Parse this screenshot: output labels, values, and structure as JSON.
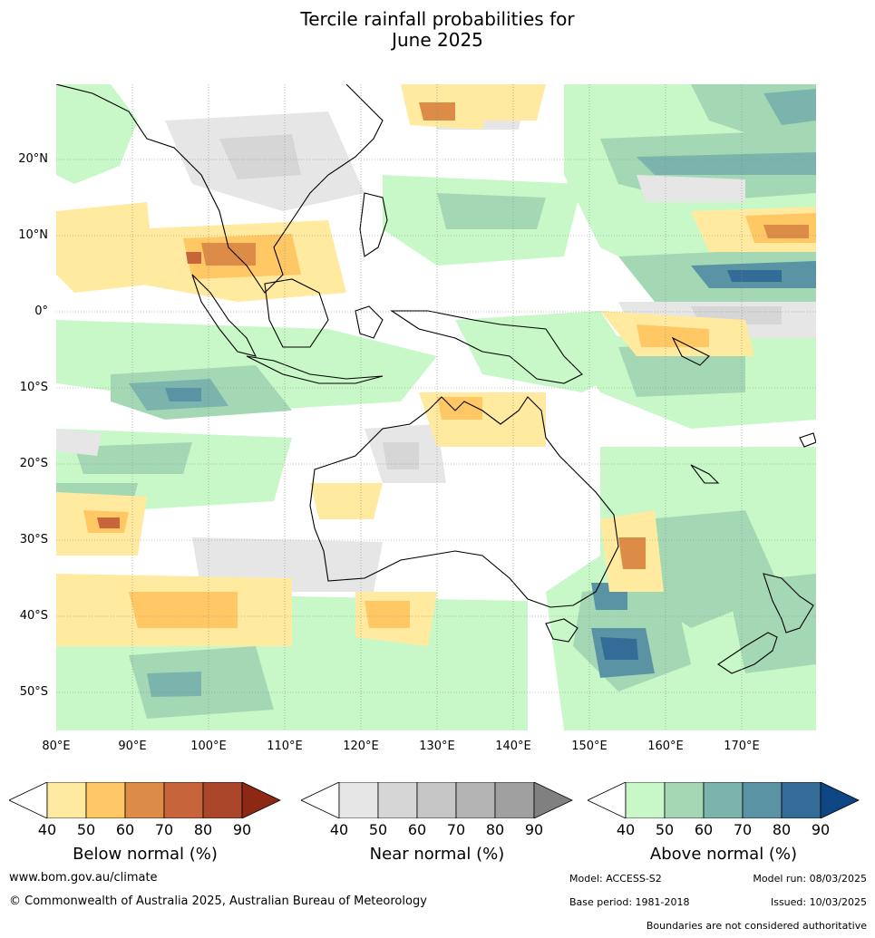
{
  "title_line1": "Tercile rainfall probabilities for",
  "title_line2": "June 2025",
  "lat_labels": [
    "20°N",
    "10°N",
    "0°",
    "10°S",
    "20°S",
    "30°S",
    "40°S",
    "50°S"
  ],
  "lon_labels": [
    "80°E",
    "90°E",
    "100°E",
    "110°E",
    "120°E",
    "130°E",
    "140°E",
    "150°E",
    "160°E",
    "170°E"
  ],
  "colorbars": {
    "below": {
      "title": "Below normal (%)",
      "ticks": [
        "40",
        "50",
        "60",
        "70",
        "80",
        "90"
      ],
      "colors": [
        "#ffffff",
        "#ffeaa0",
        "#ffc864",
        "#dc8c46",
        "#c8643c",
        "#aa462a",
        "#8c2814"
      ]
    },
    "near": {
      "title": "Near normal (%)",
      "ticks": [
        "40",
        "50",
        "60",
        "70",
        "80",
        "90"
      ],
      "colors": [
        "#ffffff",
        "#e6e6e6",
        "#d6d6d6",
        "#c6c6c6",
        "#b4b4b4",
        "#a0a0a0",
        "#808080"
      ]
    },
    "above": {
      "title": "Above normal (%)",
      "ticks": [
        "40",
        "50",
        "60",
        "70",
        "80",
        "90"
      ],
      "colors": [
        "#ffffff",
        "#c8f8c8",
        "#a4d8b4",
        "#7ab4ac",
        "#5a94a4",
        "#346c98",
        "#0e4684"
      ]
    }
  },
  "footer": {
    "website": "www.bom.gov.au/climate",
    "copyright": "© Commonwealth of Australia 2025, Australian Bureau of Meteorology",
    "model": "Model: ACCESS-S2",
    "model_run": "Model run: 08/03/2025",
    "base_period": "Base period: 1981-2018",
    "issued": "Issued: 10/03/2025",
    "disclaimer": "Boundaries are not considered authoritative"
  }
}
